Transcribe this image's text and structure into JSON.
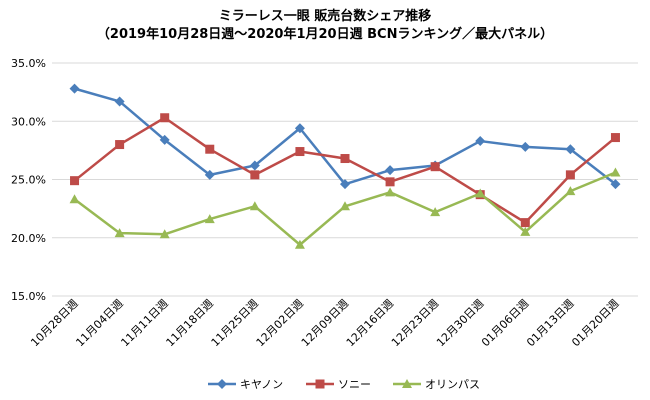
{
  "chart_data": {
    "type": "line",
    "title": "ミラーレス一眼 販売台数シェア推移",
    "subtitle": "（2019年10月28日週〜2020年1月20日週 BCNランキング／最大パネル）",
    "categories": [
      "10月28日週",
      "11月04日週",
      "11月11日週",
      "11月18日週",
      "11月25日週",
      "12月02日週",
      "12月09日週",
      "12月16日週",
      "12月23日週",
      "12月30日週",
      "01月06日週",
      "01月13日週",
      "01月20日週"
    ],
    "ylim": [
      0.15,
      0.35
    ],
    "yticks": [
      0.15,
      0.2,
      0.25,
      0.3,
      0.35
    ],
    "ytick_labels": [
      "15.0%",
      "20.0%",
      "25.0%",
      "30.0%",
      "35.0%"
    ],
    "grid": true,
    "legend_position": "bottom",
    "series": [
      {
        "name": "キヤノン",
        "color": "#4a7ebb",
        "marker": "diamond",
        "values": [
          0.328,
          0.317,
          0.284,
          0.254,
          0.262,
          0.294,
          0.246,
          0.258,
          0.262,
          0.283,
          0.278,
          0.276,
          0.246
        ]
      },
      {
        "name": "ソニー",
        "color": "#be4b48",
        "marker": "square",
        "values": [
          0.249,
          0.28,
          0.303,
          0.276,
          0.254,
          0.274,
          0.268,
          0.248,
          0.261,
          0.237,
          0.213,
          0.254,
          0.286
        ]
      },
      {
        "name": "オリンパス",
        "color": "#98b954",
        "marker": "triangle",
        "values": [
          0.233,
          0.204,
          0.203,
          0.216,
          0.227,
          0.194,
          0.227,
          0.239,
          0.222,
          0.238,
          0.205,
          0.24,
          0.256
        ]
      }
    ]
  }
}
